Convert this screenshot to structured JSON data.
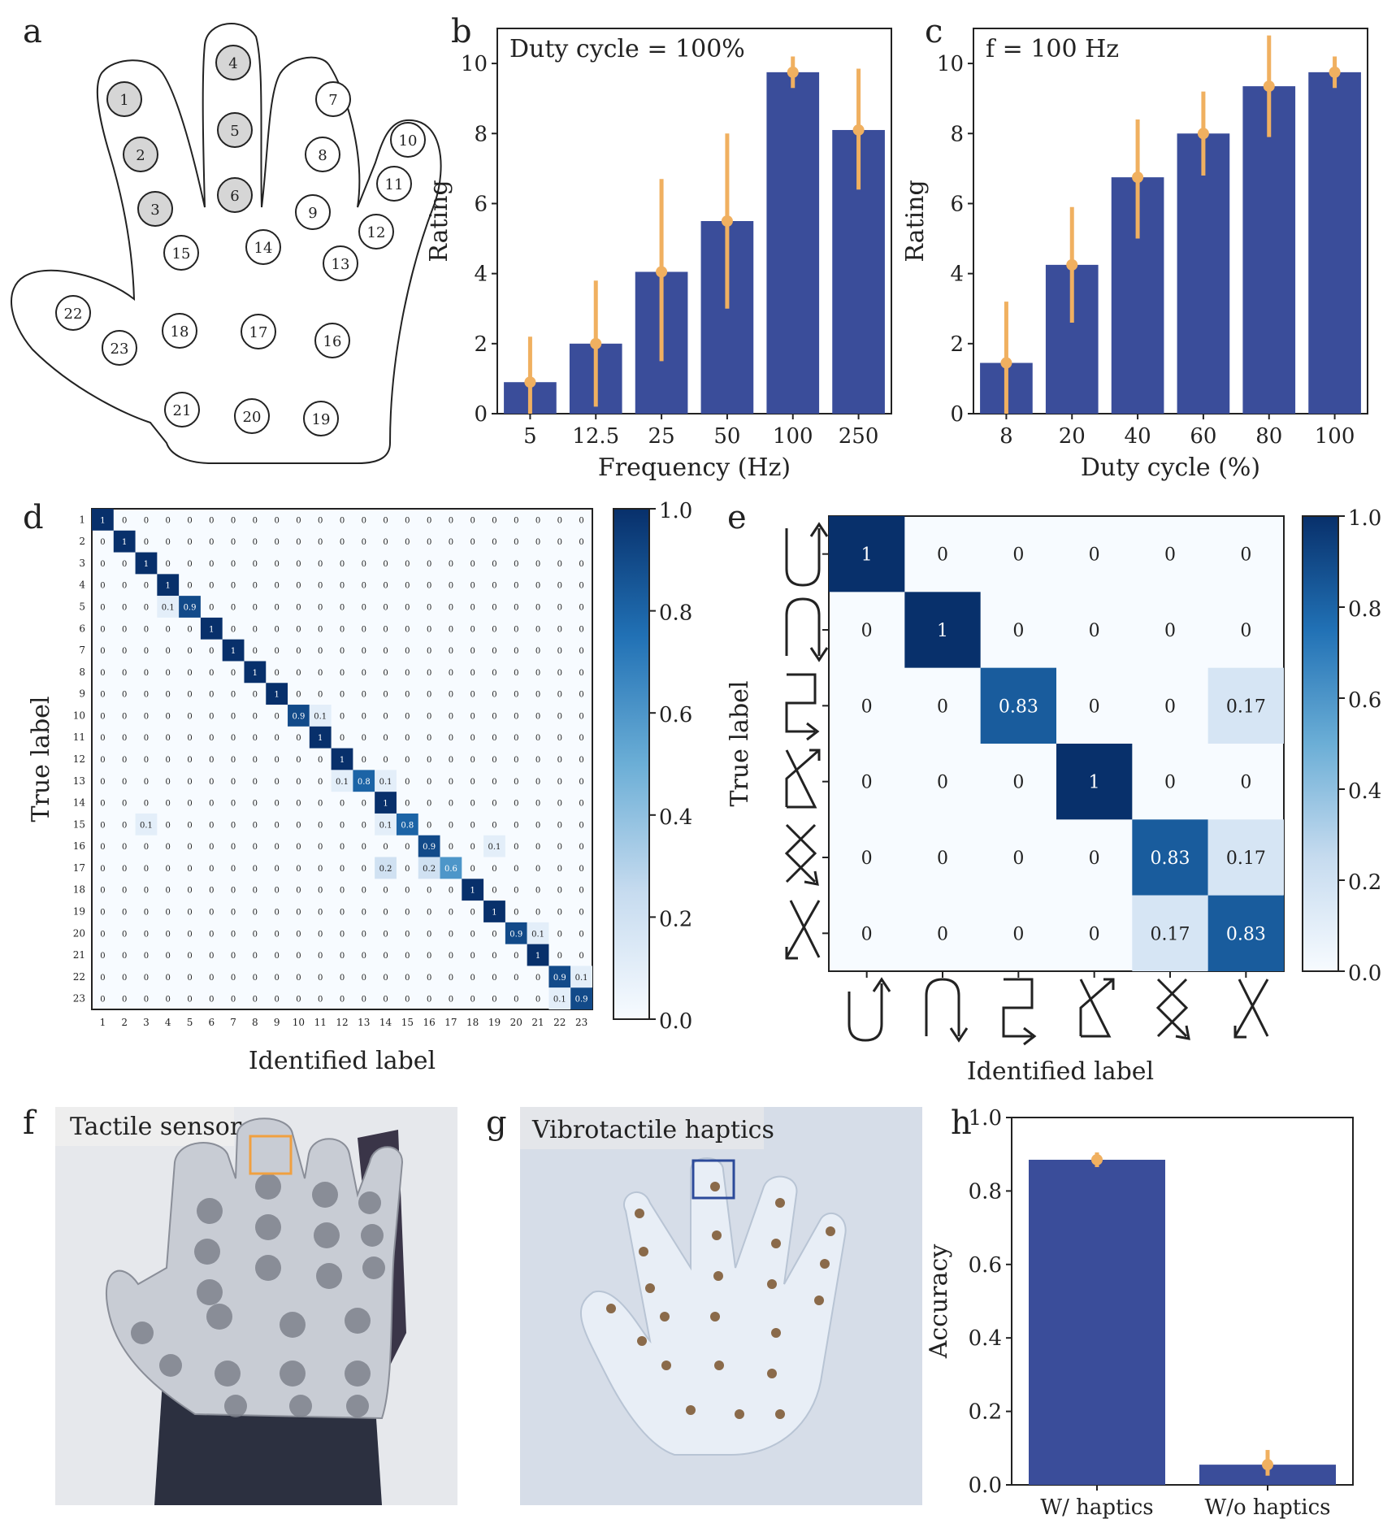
{
  "colors": {
    "bar": "#3a4d9a",
    "error": "#f0b060",
    "cmap": [
      "#f7fbff",
      "#c6dbef",
      "#6baed6",
      "#2171b5",
      "#08306b"
    ],
    "hand_grey": "#d6d6d6",
    "sensor_box": "#f0a040",
    "haptic_box": "#2c4a9a"
  },
  "panels": {
    "a": "a",
    "b": "b",
    "c": "c",
    "d": "d",
    "e": "e",
    "f": "f",
    "g": "g",
    "h": "h"
  },
  "hand_map": {
    "shaded": [
      "1",
      "2",
      "3",
      "4",
      "5",
      "6"
    ],
    "labels": [
      "1",
      "2",
      "3",
      "4",
      "5",
      "6",
      "7",
      "8",
      "9",
      "10",
      "11",
      "12",
      "13",
      "14",
      "15",
      "16",
      "17",
      "18",
      "19",
      "20",
      "21",
      "22",
      "23"
    ]
  },
  "chart_data": [
    {
      "id": "b",
      "type": "bar",
      "annotation": "Duty cycle = 100%",
      "categories": [
        "5",
        "12.5",
        "25",
        "50",
        "100",
        "250"
      ],
      "values": [
        0.9,
        2.0,
        4.05,
        5.5,
        9.75,
        8.1
      ],
      "error_low": [
        0.0,
        0.2,
        1.5,
        3.0,
        9.3,
        6.4
      ],
      "error_high": [
        2.2,
        3.8,
        6.7,
        8.0,
        10.2,
        9.85
      ],
      "xlabel": "Frequency (Hz)",
      "ylabel": "Rating",
      "ylim": [
        0,
        11
      ],
      "yticks": [
        "0",
        "2",
        "4",
        "6",
        "8",
        "10"
      ]
    },
    {
      "id": "c",
      "type": "bar",
      "annotation": "f = 100 Hz",
      "categories": [
        "8",
        "20",
        "40",
        "60",
        "80",
        "100"
      ],
      "values": [
        1.45,
        4.25,
        6.75,
        8.0,
        9.35,
        9.75
      ],
      "error_low": [
        0.0,
        2.6,
        5.0,
        6.8,
        7.9,
        9.3
      ],
      "error_high": [
        3.2,
        5.9,
        8.4,
        9.2,
        10.8,
        10.2
      ],
      "xlabel": "Duty cycle (%)",
      "ylabel": "Rating",
      "ylim": [
        0,
        11
      ],
      "yticks": [
        "0",
        "2",
        "4",
        "6",
        "8",
        "10"
      ]
    },
    {
      "id": "d",
      "type": "heatmap",
      "labels": [
        "1",
        "2",
        "3",
        "4",
        "5",
        "6",
        "7",
        "8",
        "9",
        "10",
        "11",
        "12",
        "13",
        "14",
        "15",
        "16",
        "17",
        "18",
        "19",
        "20",
        "21",
        "22",
        "23"
      ],
      "off_diagonal": [
        {
          "row": 5,
          "col": 4,
          "value": "0.1"
        },
        {
          "row": 10,
          "col": 11,
          "value": "0.1"
        },
        {
          "row": 13,
          "col": 12,
          "value": "0.1"
        },
        {
          "row": 13,
          "col": 14,
          "value": "0.1"
        },
        {
          "row": 15,
          "col": 3,
          "value": "0.1"
        },
        {
          "row": 15,
          "col": 14,
          "value": "0.1"
        },
        {
          "row": 16,
          "col": 19,
          "value": "0.1"
        },
        {
          "row": 17,
          "col": 14,
          "value": "0.2"
        },
        {
          "row": 17,
          "col": 16,
          "value": "0.2"
        },
        {
          "row": 20,
          "col": 21,
          "value": "0.1"
        },
        {
          "row": 22,
          "col": 23,
          "value": "0.1"
        },
        {
          "row": 23,
          "col": 22,
          "value": "0.1"
        }
      ],
      "diagonal": [
        "1",
        "1",
        "1",
        "1",
        "0.9",
        "1",
        "1",
        "1",
        "1",
        "0.9",
        "1",
        "1",
        "0.8",
        "1",
        "0.8",
        "0.9",
        "0.6",
        "1",
        "1",
        "0.9",
        "1",
        "0.9",
        "0.9"
      ],
      "xlabel": "Identified label",
      "ylabel": "True label",
      "colorbar_ticks": [
        "0.0",
        "0.2",
        "0.4",
        "0.6",
        "0.8",
        "1.0"
      ]
    },
    {
      "id": "e",
      "type": "heatmap",
      "matrix": [
        [
          "1",
          "0",
          "0",
          "0",
          "0",
          "0"
        ],
        [
          "0",
          "1",
          "0",
          "0",
          "0",
          "0"
        ],
        [
          "0",
          "0",
          "0.83",
          "0",
          "0",
          "0.17"
        ],
        [
          "0",
          "0",
          "0",
          "1",
          "0",
          "0"
        ],
        [
          "0",
          "0",
          "0",
          "0",
          "0.83",
          "0.17"
        ],
        [
          "0",
          "0",
          "0",
          "0",
          "0.17",
          "0.83"
        ]
      ],
      "xlabel": "Identified label",
      "ylabel": "True label",
      "colorbar_ticks": [
        "0.0",
        "0.2",
        "0.4",
        "0.6",
        "0.8",
        "1.0"
      ]
    },
    {
      "id": "h",
      "type": "bar",
      "categories": [
        "W/ haptics",
        "W/o haptics"
      ],
      "values": [
        0.885,
        0.055
      ],
      "error_low": [
        0.865,
        0.025
      ],
      "error_high": [
        0.905,
        0.095
      ],
      "ylabel": "Accuracy",
      "ylim": [
        0,
        1.0
      ],
      "yticks": [
        "0.0",
        "0.2",
        "0.4",
        "0.6",
        "0.8",
        "1.0"
      ]
    }
  ],
  "photos": {
    "f": "Tactile sensor",
    "g": "Vibrotactile haptics"
  }
}
